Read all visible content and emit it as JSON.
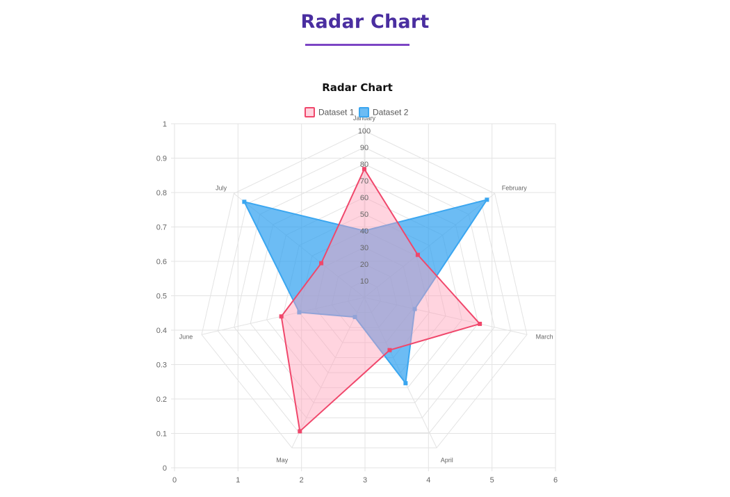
{
  "page": {
    "heading": "Radar Chart"
  },
  "colors": {
    "heading": "#4a2ea0",
    "underline": "#7c45c4",
    "grid": "#e3e3e3",
    "dataset1_border": "#f0476b",
    "dataset1_fill": "rgba(255,160,185,0.45)",
    "dataset2_border": "#3aa6f0",
    "dataset2_fill": "rgba(46,160,240,0.70)"
  },
  "chart_data": {
    "type": "radar",
    "title": "Radar Chart",
    "legend_position": "top",
    "labels": [
      "January",
      "February",
      "March",
      "April",
      "May",
      "June",
      "July"
    ],
    "radial_ticks": [
      "10",
      "20",
      "30",
      "40",
      "50",
      "60",
      "70",
      "80",
      "90",
      "100"
    ],
    "radial_range": [
      0,
      100
    ],
    "series": [
      {
        "name": "Dataset 1",
        "values": [
          77,
          41,
          71,
          35,
          89,
          51,
          33
        ]
      },
      {
        "name": "Dataset 2",
        "values": [
          40,
          94,
          31,
          57,
          13,
          40,
          92
        ]
      }
    ],
    "x_axis": {
      "range": [
        0,
        6
      ],
      "ticks": [
        "0",
        "1",
        "2",
        "3",
        "4",
        "5",
        "6"
      ]
    },
    "y_axis": {
      "range": [
        0,
        1
      ],
      "ticks": [
        "0",
        "0.1",
        "0.2",
        "0.3",
        "0.4",
        "0.5",
        "0.6",
        "0.7",
        "0.8",
        "0.9",
        "1"
      ]
    },
    "grid": true
  }
}
